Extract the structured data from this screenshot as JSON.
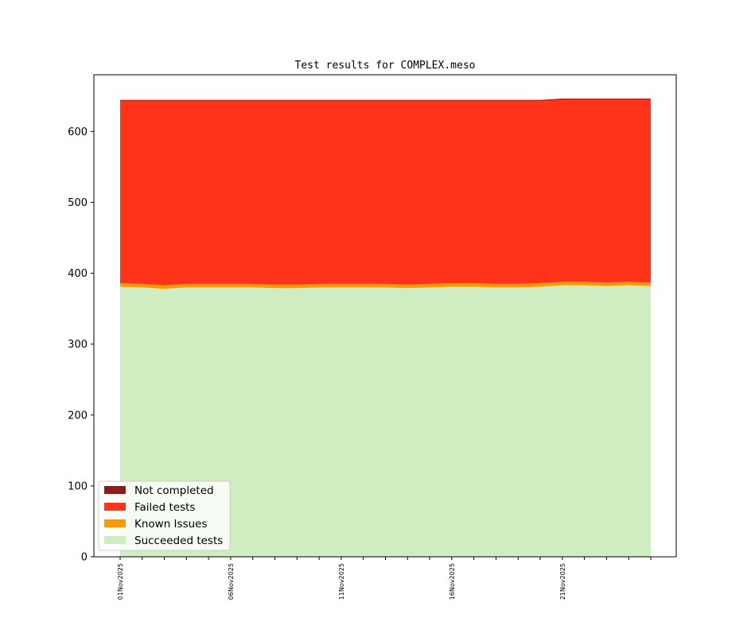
{
  "chart_data": {
    "type": "area",
    "stacked": true,
    "title": "Test results for COMPLEX.meso",
    "xlabel": "",
    "ylabel": "",
    "ylim": [
      0,
      680
    ],
    "yticks": [
      0,
      100,
      200,
      300,
      400,
      500,
      600
    ],
    "x": [
      "01Nov2025",
      "02Nov2025",
      "03Nov2025",
      "04Nov2025",
      "05Nov2025",
      "06Nov2025",
      "07Nov2025",
      "08Nov2025",
      "09Nov2025",
      "10Nov2025",
      "11Nov2025",
      "12Nov2025",
      "13Nov2025",
      "14Nov2025",
      "15Nov2025",
      "16Nov2025",
      "17Nov2025",
      "18Nov2025",
      "19Nov2025",
      "20Nov2025",
      "21Nov2025",
      "22Nov2025",
      "23Nov2025",
      "24Nov2025",
      "25Nov2025"
    ],
    "xtick_labels": [
      "01Nov2025",
      "06Nov2025",
      "11Nov2025",
      "16Nov2025",
      "21Nov2025"
    ],
    "series": [
      {
        "name": "Succeeded tests",
        "color": "#cfedc0",
        "values": [
          381,
          380,
          378,
          380,
          380,
          380,
          380,
          379,
          379,
          380,
          380,
          380,
          380,
          379,
          380,
          381,
          381,
          380,
          380,
          381,
          383,
          383,
          382,
          383,
          382
        ]
      },
      {
        "name": "Known Issues",
        "color": "#ff9900",
        "values": [
          5,
          5,
          5,
          5,
          5,
          5,
          5,
          5,
          5,
          5,
          5,
          5,
          5,
          5,
          5,
          5,
          5,
          5,
          5,
          5,
          5,
          5,
          5,
          5,
          5
        ]
      },
      {
        "name": "Failed tests",
        "color": "#ff331a",
        "values": [
          258,
          259,
          261,
          259,
          259,
          259,
          259,
          260,
          260,
          259,
          259,
          259,
          259,
          260,
          259,
          258,
          258,
          259,
          259,
          258,
          258,
          258,
          259,
          258,
          259
        ]
      },
      {
        "name": "Not completed",
        "color": "#931a1a",
        "values": [
          0,
          0,
          0,
          0,
          0,
          0,
          0,
          0,
          0,
          0,
          0,
          0,
          0,
          0,
          0,
          0,
          0,
          0,
          0,
          0,
          0,
          0,
          0,
          0,
          0
        ]
      }
    ],
    "legend": {
      "placement": "lower-left",
      "entries": [
        "Not completed",
        "Failed tests",
        "Known Issues",
        "Succeeded tests"
      ]
    },
    "grid": false
  }
}
